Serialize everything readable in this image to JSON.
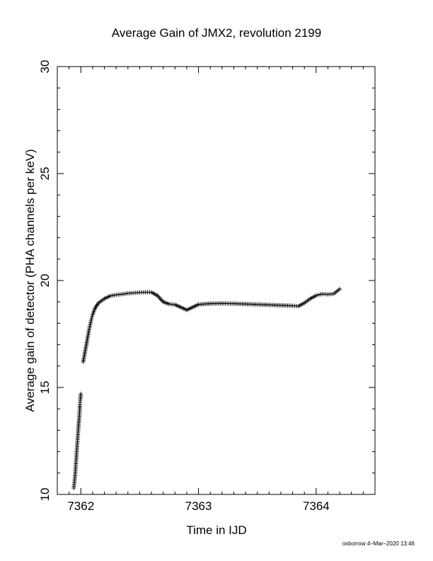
{
  "chart_data": {
    "type": "scatter",
    "title": "Average Gain of JMX2, revolution 2199",
    "xlabel": "Time in IJD",
    "ylabel": "Average gain of detector (PHA channels per keV)",
    "xlim": [
      7361.8,
      7364.5
    ],
    "ylim": [
      10,
      30
    ],
    "xticks": [
      7362,
      7363,
      7364
    ],
    "yticks": [
      10,
      15,
      20,
      25,
      30
    ],
    "marker": "plus",
    "grid": false,
    "legend": "none",
    "series": [
      {
        "points": [
          [
            7361.94,
            10.3
          ],
          [
            7361.95,
            10.8
          ],
          [
            7361.955,
            11.2
          ],
          [
            7361.96,
            11.6
          ],
          [
            7361.965,
            12.0
          ],
          [
            7361.97,
            12.4
          ],
          [
            7361.975,
            12.8
          ],
          [
            7361.98,
            13.2
          ],
          [
            7361.985,
            13.5
          ],
          [
            7361.99,
            13.9
          ],
          [
            7361.992,
            14.2
          ],
          [
            7361.995,
            14.4
          ],
          [
            7362.0,
            14.7
          ],
          [
            7362.02,
            16.2
          ],
          [
            7362.03,
            16.5
          ],
          [
            7362.04,
            16.8
          ],
          [
            7362.05,
            17.1
          ],
          [
            7362.06,
            17.4
          ],
          [
            7362.07,
            17.7
          ],
          [
            7362.08,
            17.95
          ],
          [
            7362.09,
            18.2
          ],
          [
            7362.1,
            18.4
          ],
          [
            7362.12,
            18.7
          ],
          [
            7362.15,
            18.95
          ],
          [
            7362.2,
            19.15
          ],
          [
            7362.25,
            19.28
          ],
          [
            7362.3,
            19.33
          ],
          [
            7362.35,
            19.36
          ],
          [
            7362.4,
            19.4
          ],
          [
            7362.45,
            19.42
          ],
          [
            7362.5,
            19.44
          ],
          [
            7362.55,
            19.45
          ],
          [
            7362.6,
            19.45
          ],
          [
            7362.65,
            19.3
          ],
          [
            7362.7,
            19.0
          ],
          [
            7362.75,
            18.9
          ],
          [
            7362.8,
            18.87
          ],
          [
            7362.85,
            18.75
          ],
          [
            7362.9,
            18.62
          ],
          [
            7362.95,
            18.75
          ],
          [
            7363.0,
            18.88
          ],
          [
            7363.1,
            18.92
          ],
          [
            7363.2,
            18.93
          ],
          [
            7363.3,
            18.92
          ],
          [
            7363.4,
            18.9
          ],
          [
            7363.5,
            18.88
          ],
          [
            7363.6,
            18.86
          ],
          [
            7363.7,
            18.84
          ],
          [
            7363.8,
            18.82
          ],
          [
            7363.85,
            18.8
          ],
          [
            7363.9,
            18.95
          ],
          [
            7363.95,
            19.15
          ],
          [
            7364.0,
            19.3
          ],
          [
            7364.05,
            19.37
          ],
          [
            7364.1,
            19.35
          ],
          [
            7364.15,
            19.38
          ],
          [
            7364.2,
            19.6
          ]
        ]
      }
    ],
    "footer": "oxborrow  4–Mar–2020 13:46"
  }
}
